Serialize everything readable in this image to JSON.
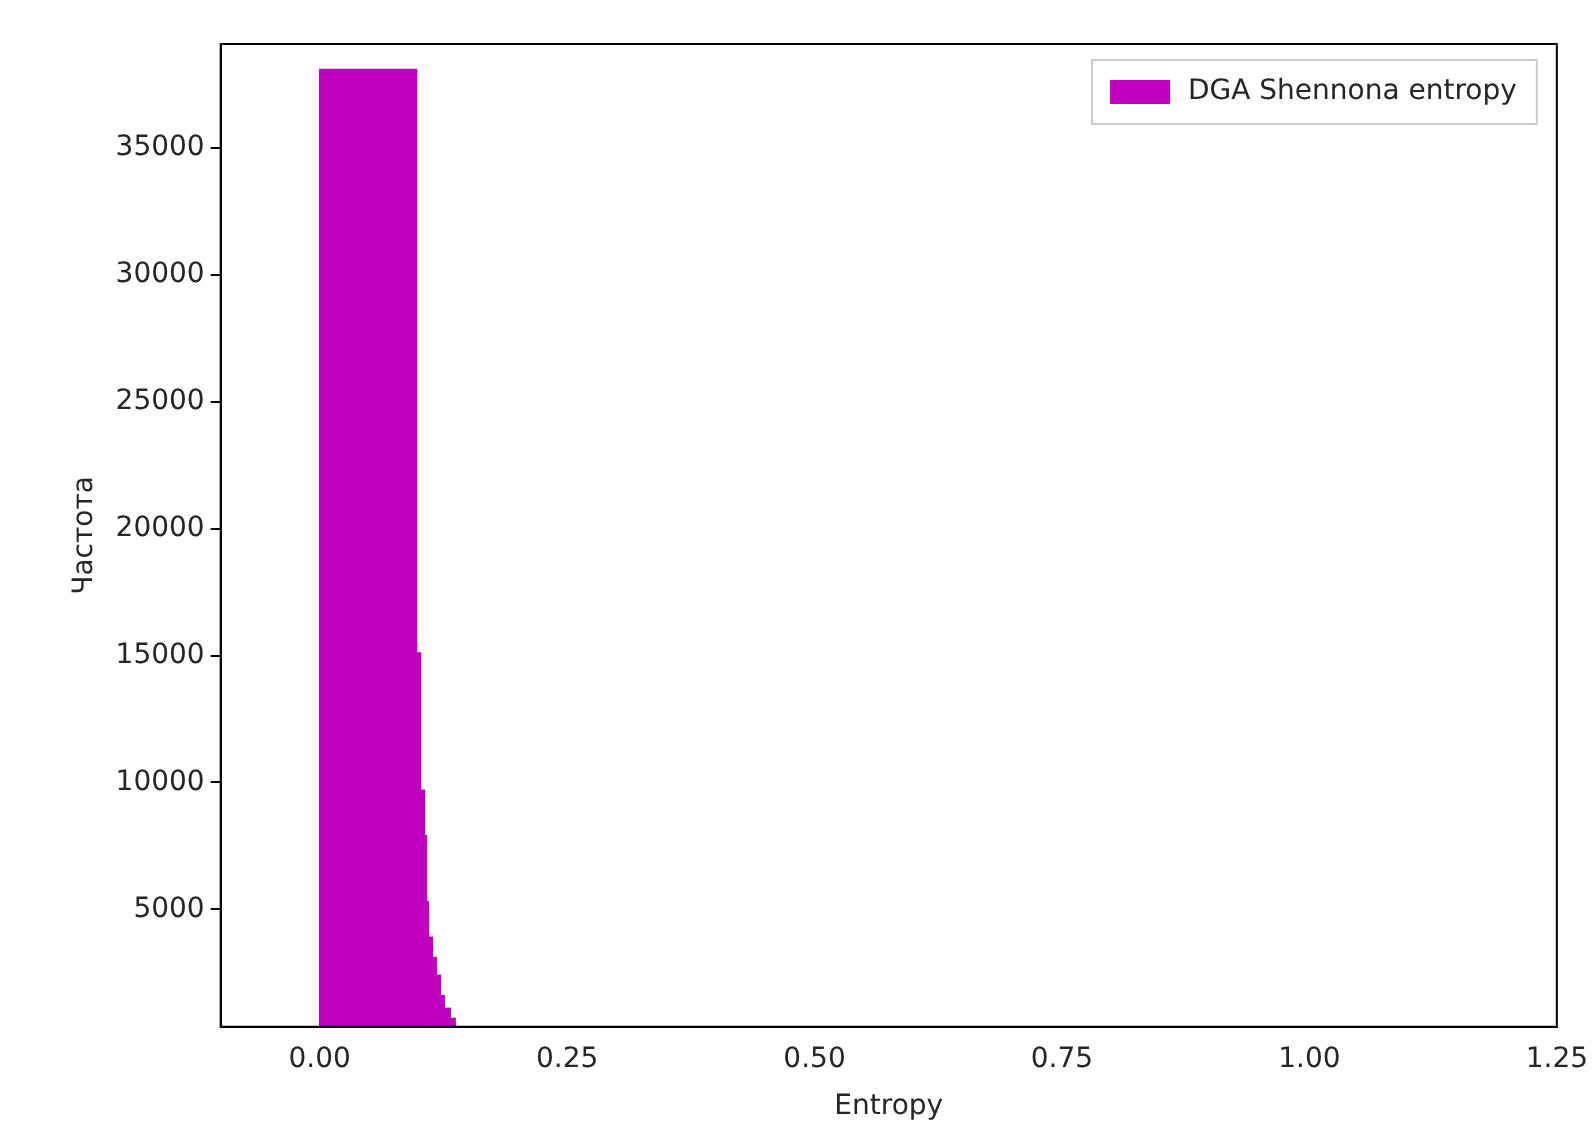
{
  "chart_data": {
    "type": "histogram",
    "xlabel": "Entropy",
    "ylabel": "Частота",
    "bins": [
      0,
      0.098,
      0.102,
      0.106,
      0.108,
      0.11,
      0.114,
      0.118,
      0.122,
      0.126,
      0.132,
      0.137
    ],
    "series": [
      {
        "name": "DGA Shennona entropy",
        "color": "#bf00bf",
        "values": [
          38100,
          15100,
          9700,
          7900,
          5300,
          3900,
          3100,
          2400,
          1600,
          1100,
          700
        ]
      }
    ],
    "xlim": [
      -0.1,
      1.25
    ],
    "xticks": [
      {
        "value": 0,
        "label": "0.00"
      },
      {
        "value": 0.25,
        "label": "0.25"
      },
      {
        "value": 0.5,
        "label": "0.50"
      },
      {
        "value": 0.75,
        "label": "0.75"
      },
      {
        "value": 1,
        "label": "1.00"
      },
      {
        "value": 1.25,
        "label": "1.25"
      }
    ],
    "ylim": [
      370,
      39100
    ],
    "yticks": [
      5000,
      10000,
      15000,
      20000,
      25000,
      30000,
      35000
    ],
    "grid": false,
    "legend": "top right"
  }
}
